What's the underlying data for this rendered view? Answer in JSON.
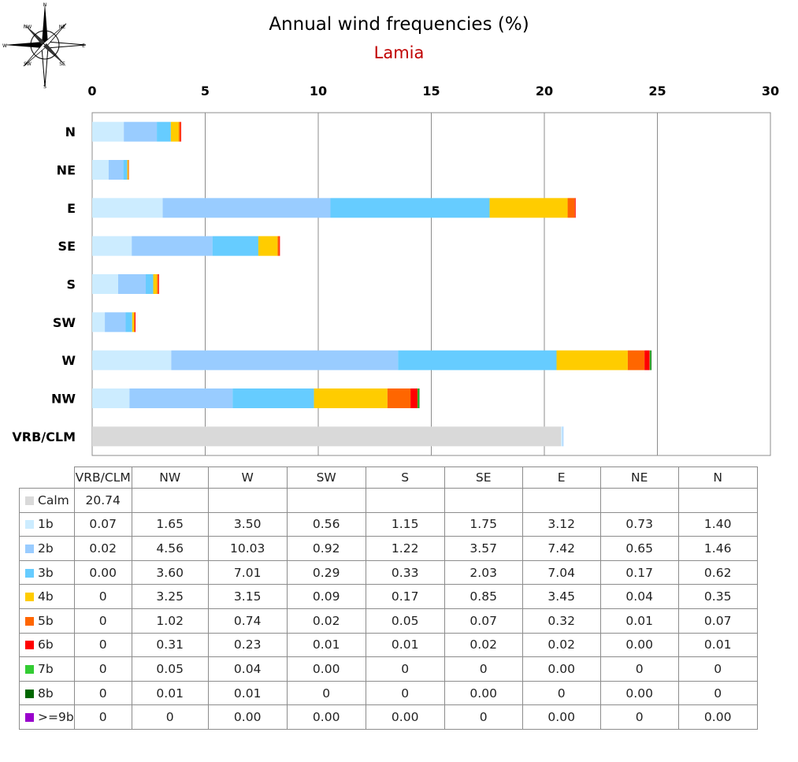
{
  "chart_data": {
    "type": "bar",
    "orientation": "horizontal",
    "stacked": true,
    "title": "Annual wind frequencies (%)",
    "subtitle": "Lamia",
    "xlim": [
      0,
      30
    ],
    "x_ticks": [
      0,
      5,
      10,
      15,
      20,
      25,
      30
    ],
    "grid": true,
    "categories": [
      "N",
      "NE",
      "E",
      "SE",
      "S",
      "SW",
      "W",
      "NW",
      "VRB/CLM"
    ],
    "series": [
      {
        "name": "Calm",
        "color": "#d9d9d9",
        "values": [
          0,
          0,
          0,
          0,
          0,
          0,
          0,
          0,
          20.74
        ]
      },
      {
        "name": "1b",
        "color": "#ccecff",
        "values": [
          1.4,
          0.73,
          3.12,
          1.75,
          1.15,
          0.56,
          3.5,
          1.65,
          0.07
        ]
      },
      {
        "name": "2b",
        "color": "#99ccff",
        "values": [
          1.46,
          0.65,
          7.42,
          3.57,
          1.22,
          0.92,
          10.03,
          4.56,
          0.02
        ]
      },
      {
        "name": "3b",
        "color": "#66ccff",
        "values": [
          0.62,
          0.17,
          7.04,
          2.03,
          0.33,
          0.29,
          7.01,
          3.6,
          0.0
        ]
      },
      {
        "name": "4b",
        "color": "#ffcc00",
        "values": [
          0.35,
          0.04,
          3.45,
          0.85,
          0.17,
          0.09,
          3.15,
          3.25,
          0
        ]
      },
      {
        "name": "5b",
        "color": "#ff6600",
        "values": [
          0.07,
          0.01,
          0.32,
          0.07,
          0.05,
          0.02,
          0.74,
          1.02,
          0
        ]
      },
      {
        "name": "6b",
        "color": "#ff0000",
        "values": [
          0.01,
          0.0,
          0.02,
          0.02,
          0.01,
          0.01,
          0.23,
          0.31,
          0
        ]
      },
      {
        "name": "7b",
        "color": "#33cc33",
        "values": [
          0,
          0,
          0.0,
          0,
          0,
          0.0,
          0.04,
          0.05,
          0
        ]
      },
      {
        "name": "8b",
        "color": "#006600",
        "values": [
          0,
          0.0,
          0,
          0.0,
          0,
          0,
          0.01,
          0.01,
          0
        ]
      },
      {
        "name": ">=9b",
        "color": "#9900cc",
        "values": [
          0.0,
          0,
          0.0,
          0,
          0.0,
          0.0,
          0.0,
          0,
          0
        ]
      }
    ]
  },
  "compass": {
    "labels": {
      "n": "N",
      "ne": "NE",
      "e": "E",
      "se": "SE",
      "s": "S",
      "sw": "SW",
      "w": "W",
      "nw": "NW"
    }
  },
  "table": {
    "columns": [
      "VRB/CLM",
      "NW",
      "W",
      "SW",
      "S",
      "SE",
      "E",
      "NE",
      "N"
    ],
    "rows": [
      {
        "label": "Calm",
        "color": "#d9d9d9",
        "cells": [
          "20.74",
          "",
          "",
          "",
          "",
          "",
          "",
          "",
          ""
        ]
      },
      {
        "label": "1b",
        "color": "#ccecff",
        "cells": [
          "0.07",
          "1.65",
          "3.50",
          "0.56",
          "1.15",
          "1.75",
          "3.12",
          "0.73",
          "1.40"
        ]
      },
      {
        "label": "2b",
        "color": "#99ccff",
        "cells": [
          "0.02",
          "4.56",
          "10.03",
          "0.92",
          "1.22",
          "3.57",
          "7.42",
          "0.65",
          "1.46"
        ]
      },
      {
        "label": "3b",
        "color": "#66ccff",
        "cells": [
          "0.00",
          "3.60",
          "7.01",
          "0.29",
          "0.33",
          "2.03",
          "7.04",
          "0.17",
          "0.62"
        ]
      },
      {
        "label": "4b",
        "color": "#ffcc00",
        "cells": [
          "0",
          "3.25",
          "3.15",
          "0.09",
          "0.17",
          "0.85",
          "3.45",
          "0.04",
          "0.35"
        ]
      },
      {
        "label": "5b",
        "color": "#ff6600",
        "cells": [
          "0",
          "1.02",
          "0.74",
          "0.02",
          "0.05",
          "0.07",
          "0.32",
          "0.01",
          "0.07"
        ]
      },
      {
        "label": "6b",
        "color": "#ff0000",
        "cells": [
          "0",
          "0.31",
          "0.23",
          "0.01",
          "0.01",
          "0.02",
          "0.02",
          "0.00",
          "0.01"
        ]
      },
      {
        "label": "7b",
        "color": "#33cc33",
        "cells": [
          "0",
          "0.05",
          "0.04",
          "0.00",
          "0",
          "0",
          "0.00",
          "0",
          "0"
        ]
      },
      {
        "label": "8b",
        "color": "#006600",
        "cells": [
          "0",
          "0.01",
          "0.01",
          "0",
          "0",
          "0.00",
          "0",
          "0.00",
          "0"
        ]
      },
      {
        "label": ">=9b",
        "color": "#9900cc",
        "cells": [
          "0",
          "0",
          "0.00",
          "0.00",
          "0.00",
          "0",
          "0.00",
          "0",
          "0.00"
        ]
      }
    ]
  }
}
